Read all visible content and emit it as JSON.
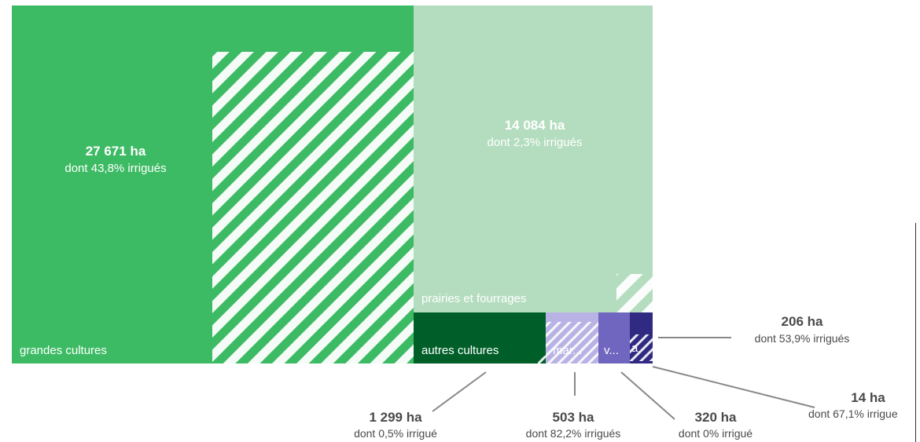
{
  "chart_data": {
    "type": "treemap",
    "title": "",
    "unit": "ha",
    "series": [
      {
        "name": "grandes cultures",
        "label": "grandes cultures",
        "value": 27671,
        "value_text": "27 671 ha",
        "irrigated_pct": 43.8,
        "irrigated_text": "dont 43,8% irrigués",
        "color": "#3dbb64"
      },
      {
        "name": "prairies et fourrages",
        "label": "prairies et fourrages",
        "value": 14084,
        "value_text": "14 084 ha",
        "irrigated_pct": 2.3,
        "irrigated_text": "dont 2,3% irrigués",
        "color": "#b4ddbf"
      },
      {
        "name": "autres cultures",
        "label": "autres cultures",
        "value": 1299,
        "value_text": "1 299 ha",
        "irrigated_pct": 0.5,
        "irrigated_text": "dont 0,5% irrigué",
        "color": "#005f29"
      },
      {
        "name": "mar...",
        "label": "mar...",
        "value": 503,
        "value_text": "503 ha",
        "irrigated_pct": 82.2,
        "irrigated_text": "dont 82,2% irrigués",
        "color": "#b8b3e4"
      },
      {
        "name": "v...",
        "label": "v...",
        "value": 320,
        "value_text": "320 ha",
        "irrigated_pct": 0,
        "irrigated_text": "dont 0% irrigué",
        "color": "#7065bf"
      },
      {
        "name": "a",
        "label": "a",
        "value": 206,
        "value_text": "206 ha",
        "irrigated_pct": 53.9,
        "irrigated_text": "dont 53,9% irrigués",
        "color": "#302a82"
      },
      {
        "name": "",
        "label": "",
        "value": 14,
        "value_text": "14 ha",
        "irrigated_pct": 67.1,
        "irrigated_text": "dont 67,1% irrigue",
        "color": "#302a82"
      }
    ]
  }
}
